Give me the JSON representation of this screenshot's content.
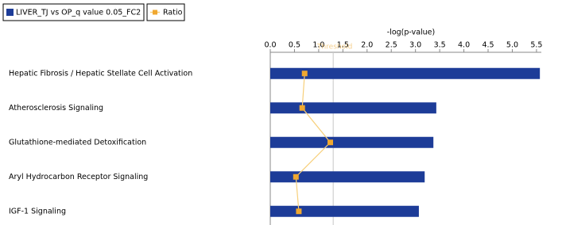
{
  "chart_data": {
    "type": "bar",
    "orientation": "horizontal",
    "xlabel": "-log(p-value)",
    "categories": [
      "Hepatic Fibrosis / Hepatic Stellate Cell Activation",
      "Atherosclerosis Signaling",
      "Glutathione-mediated Detoxification",
      "Aryl Hydrocarbon Receptor Signaling",
      "IGF-1 Signaling"
    ],
    "series": [
      {
        "name": "LIVER_TJ vs OP_q value 0.05_FC2",
        "type": "bar",
        "color": "#1d3c98",
        "values": [
          5.57,
          3.43,
          3.37,
          3.19,
          3.07
        ]
      },
      {
        "name": "Ratio",
        "type": "line",
        "color": "#f0a830",
        "line_color": "#f7cf7a",
        "values": [
          0.71,
          0.66,
          1.24,
          0.53,
          0.59
        ]
      }
    ],
    "xlim": [
      0,
      5.6
    ],
    "xticks": [
      {
        "value": 0,
        "label": "0.0"
      },
      0.5,
      {
        "value": 1,
        "label": "1.0"
      },
      1.5,
      {
        "value": 2,
        "label": "2.0"
      },
      2.5,
      {
        "value": 3,
        "label": "3.0"
      },
      3.5,
      {
        "value": 4,
        "label": "4.0"
      },
      4.5,
      {
        "value": 5,
        "label": "5.0"
      },
      5.5
    ],
    "threshold": {
      "value": 1.3,
      "label": "Threshold"
    }
  }
}
